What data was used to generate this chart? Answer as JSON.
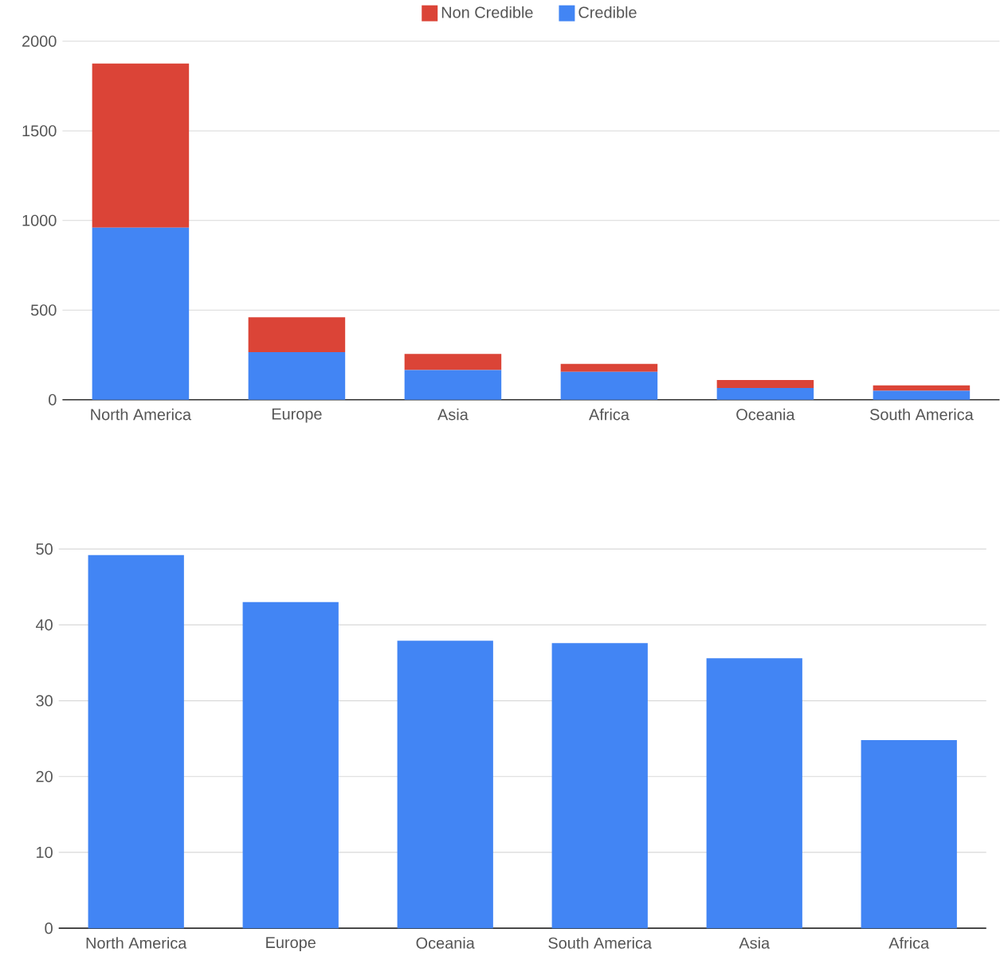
{
  "chart_data": [
    {
      "type": "bar",
      "stacked": true,
      "legend": "top",
      "grid": "y",
      "categories": [
        "North America",
        "Europe",
        "Asia",
        "Africa",
        "Oceania",
        "South America"
      ],
      "series": [
        {
          "name": "Credible",
          "color": "#4285f4",
          "values": [
            960,
            265,
            165,
            155,
            65,
            50
          ]
        },
        {
          "name": "Non Credible",
          "color": "#db4437",
          "values": [
            915,
            195,
            90,
            45,
            45,
            30
          ]
        }
      ],
      "ylim": [
        0,
        2000
      ],
      "yticks": [
        0,
        500,
        1000,
        1500,
        2000
      ]
    },
    {
      "type": "bar",
      "grid": "y",
      "categories": [
        "North America",
        "Europe",
        "Oceania",
        "South America",
        "Asia",
        "Africa"
      ],
      "color": "#4285f4",
      "values": [
        49.2,
        43.0,
        37.9,
        37.6,
        35.6,
        24.8
      ],
      "ylim": [
        0,
        50
      ],
      "yticks": [
        0,
        10,
        20,
        30,
        40,
        50
      ]
    }
  ]
}
